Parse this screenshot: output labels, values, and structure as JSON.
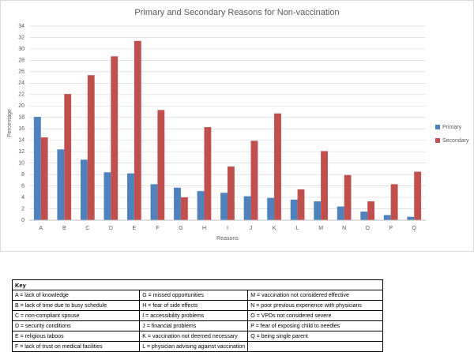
{
  "chart_data": {
    "type": "bar",
    "title": "Primary and Secondary Reasons for Non-vaccination",
    "x_label": "Reasons",
    "y_label": "Percentage",
    "categories": [
      "A",
      "B",
      "C",
      "D",
      "E",
      "F",
      "G",
      "H",
      "I",
      "J",
      "K",
      "L",
      "M",
      "N",
      "O",
      "P",
      "Q"
    ],
    "series": [
      {
        "name": "Primary",
        "color": "#4f81bd",
        "values": [
          18.1,
          12.4,
          10.6,
          8.4,
          8.2,
          6.3,
          5.7,
          5.1,
          4.8,
          4.2,
          3.9,
          3.6,
          3.3,
          2.4,
          1.5,
          0.9,
          0.6
        ]
      },
      {
        "name": "Secondary",
        "color": "#c0504d",
        "values": [
          14.5,
          22.1,
          25.4,
          28.7,
          31.4,
          19.3,
          4.0,
          16.3,
          9.4,
          13.9,
          18.7,
          5.4,
          12.1,
          7.9,
          3.3,
          6.3,
          8.5
        ]
      }
    ],
    "ylim": [
      0,
      34
    ],
    "yticks": [
      0,
      2,
      4,
      6,
      8,
      10,
      12,
      14,
      16,
      18,
      20,
      22,
      24,
      26,
      28,
      30,
      32,
      34
    ],
    "grid": true,
    "legend": "right"
  },
  "key": {
    "title": "Key",
    "rows": [
      [
        "A =  lack of knowledge",
        "G = missed opportunities",
        "M = vaccination not considered effective"
      ],
      [
        "B = lack of time due to busy schedule",
        "H = fear of side effects",
        "N = poor previous experience with physicians"
      ],
      [
        "C = non-compliant spouse",
        "I = accessibility problems",
        "O = VPDs not considered severe"
      ],
      [
        "D = security conditions",
        "J = financial problems",
        "P = fear of exposing child to needles"
      ],
      [
        "E = religious taboos",
        "K = vaccination not deemed necessary",
        "Q = being single parent"
      ],
      [
        "F = lack of trust on medical facilities",
        "L = physician advising against vaccination",
        ""
      ]
    ]
  }
}
